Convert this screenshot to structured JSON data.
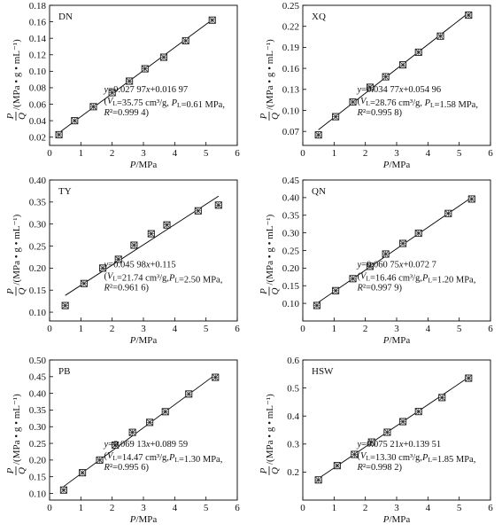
{
  "chart_data": [
    {
      "type": "scatter",
      "panel_label": "DN",
      "xlabel": "P/MPa",
      "ylabel": "P/Q /(MPa • g • mL⁻¹)",
      "xlim": [
        0,
        6
      ],
      "ylim": [
        0.01,
        0.18
      ],
      "xticks": [
        0,
        1,
        2,
        3,
        4,
        5,
        6
      ],
      "xtick_labels": [
        "0",
        "1",
        "2",
        "3",
        "4",
        "5",
        "6"
      ],
      "yticks": [
        0.02,
        0.04,
        0.06,
        0.08,
        0.1,
        0.12,
        0.14,
        0.16,
        0.18
      ],
      "ytick_labels": [
        "0.02",
        "0.04",
        "0.06",
        "0.08",
        "0.10",
        "0.12",
        "0.14",
        "0.16",
        "0.18"
      ],
      "points": {
        "x": [
          0.3,
          0.8,
          1.4,
          2.0,
          2.55,
          3.05,
          3.65,
          4.35,
          5.2
        ],
        "y": [
          0.023,
          0.04,
          0.057,
          0.074,
          0.088,
          0.103,
          0.117,
          0.137,
          0.162
        ]
      },
      "fit": {
        "slope": 0.02797,
        "intercept": 0.01697,
        "x_range": [
          0.3,
          5.25
        ]
      },
      "annotation": [
        "y=0.027 97x+0.016 97",
        "(VL=35.75 cm³/g,  PL=0.61 MPa,",
        "R²=0.999 4)"
      ],
      "ann_pos": "lower-right",
      "label_pos": "top-left"
    },
    {
      "type": "scatter",
      "panel_label": "XQ",
      "xlabel": "P/MPa",
      "ylabel": "P/Q /(MPa • g • mL⁻¹)",
      "xlim": [
        0,
        6
      ],
      "ylim": [
        0.05,
        0.25
      ],
      "xticks": [
        0,
        1,
        2,
        3,
        4,
        5,
        6
      ],
      "xtick_labels": [
        "0",
        "1",
        "2",
        "3",
        "4",
        "5",
        "6"
      ],
      "yticks": [
        0.07,
        0.1,
        0.13,
        0.16,
        0.19,
        0.22,
        0.25
      ],
      "ytick_labels": [
        "0.07",
        "0.10",
        "0.13",
        "0.16",
        "0.19",
        "0.22",
        "0.25"
      ],
      "points": {
        "x": [
          0.5,
          1.05,
          1.6,
          2.15,
          2.65,
          3.2,
          3.7,
          4.4,
          5.3
        ],
        "y": [
          0.065,
          0.091,
          0.112,
          0.133,
          0.148,
          0.165,
          0.183,
          0.206,
          0.236
        ]
      },
      "fit": {
        "slope": 0.03477,
        "intercept": 0.05496,
        "x_range": [
          0.5,
          5.3
        ]
      },
      "annotation": [
        "y=0.034 77x+0.054 96",
        "(VL=28.76 cm³/g,  PL=1.58 MPa,",
        "R²=0.995 8)"
      ],
      "ann_pos": "lower-right",
      "label_pos": "top-left"
    },
    {
      "type": "scatter",
      "panel_label": "TY",
      "xlabel": "P/MPa",
      "ylabel": "P/Q /(MPa • g • mL⁻¹)",
      "xlim": [
        0,
        6
      ],
      "ylim": [
        0.08,
        0.4
      ],
      "xticks": [
        0,
        1,
        2,
        3,
        4,
        5,
        6
      ],
      "xtick_labels": [
        "0",
        "1",
        "2",
        "3",
        "4",
        "5",
        "6"
      ],
      "yticks": [
        0.1,
        0.15,
        0.2,
        0.25,
        0.3,
        0.35,
        0.4
      ],
      "ytick_labels": [
        "0.10",
        "0.15",
        "0.20",
        "0.25",
        "0.30",
        "0.35",
        "0.40"
      ],
      "points": {
        "x": [
          0.5,
          1.1,
          1.7,
          2.2,
          2.7,
          3.25,
          3.75,
          4.75,
          5.4
        ],
        "y": [
          0.115,
          0.165,
          0.2,
          0.22,
          0.252,
          0.278,
          0.298,
          0.33,
          0.343
        ]
      },
      "fit": {
        "slope": 0.04598,
        "intercept": 0.115,
        "x_range": [
          0.5,
          5.4
        ]
      },
      "annotation": [
        "y=0.045 98x+0.115",
        "(VL=21.74 cm³/g,PL=2.50 MPa,",
        "R²=0.961 6)"
      ],
      "ann_pos": "lower-right",
      "label_pos": "top-left"
    },
    {
      "type": "scatter",
      "panel_label": "QN",
      "xlabel": "P/MPa",
      "ylabel": "P/Q /(MPa • g • mL⁻¹)",
      "xlim": [
        0,
        6
      ],
      "ylim": [
        0.05,
        0.45
      ],
      "xticks": [
        0,
        1,
        2,
        3,
        4,
        5,
        6
      ],
      "xtick_labels": [
        "0",
        "1",
        "2",
        "3",
        "4",
        "5",
        "6"
      ],
      "yticks": [
        0.1,
        0.15,
        0.2,
        0.25,
        0.3,
        0.35,
        0.4,
        0.45
      ],
      "ytick_labels": [
        "0.10",
        "0.15",
        "0.20",
        "0.25",
        "0.30",
        "0.35",
        "0.40",
        "0.45"
      ],
      "points": {
        "x": [
          0.45,
          1.05,
          1.6,
          2.15,
          2.65,
          3.2,
          3.7,
          4.65,
          5.4
        ],
        "y": [
          0.094,
          0.136,
          0.17,
          0.205,
          0.24,
          0.27,
          0.299,
          0.355,
          0.396
        ]
      },
      "fit": {
        "slope": 0.06075,
        "intercept": 0.0727,
        "x_range": [
          0.45,
          5.4
        ]
      },
      "annotation": [
        "y=0.060 75x+0.072 7",
        "(VL=16.46 cm³/g,PL=1.20 MPa,",
        "R²=0.997 9)"
      ],
      "ann_pos": "lower-right",
      "label_pos": "top-left"
    },
    {
      "type": "scatter",
      "panel_label": "PB",
      "xlabel": "P/MPa",
      "ylabel": "P/Q /(MPa • g • mL⁻¹)",
      "xlim": [
        0,
        6
      ],
      "ylim": [
        0.08,
        0.5
      ],
      "xticks": [
        0,
        1,
        2,
        3,
        4,
        5,
        6
      ],
      "xtick_labels": [
        "0",
        "1",
        "2",
        "3",
        "4",
        "5",
        "6"
      ],
      "yticks": [
        0.1,
        0.15,
        0.2,
        0.25,
        0.3,
        0.35,
        0.4,
        0.45,
        0.5
      ],
      "ytick_labels": [
        "0.10",
        "0.15",
        "0.20",
        "0.25",
        "0.30",
        "0.35",
        "0.40",
        "0.45",
        "0.50"
      ],
      "points": {
        "x": [
          0.45,
          1.05,
          1.6,
          2.1,
          2.65,
          3.2,
          3.7,
          4.45,
          5.3
        ],
        "y": [
          0.11,
          0.162,
          0.2,
          0.245,
          0.283,
          0.313,
          0.345,
          0.398,
          0.448
        ]
      },
      "fit": {
        "slope": 0.06913,
        "intercept": 0.08959,
        "x_range": [
          0.45,
          5.3
        ]
      },
      "annotation": [
        "y=0.069 13x+0.089 59",
        "(VL=14.47 cm³/g,PL=1.30 MPa,",
        "R²=0.995 6)"
      ],
      "ann_pos": "lower-right",
      "label_pos": "top-left"
    },
    {
      "type": "scatter",
      "panel_label": "HSW",
      "xlabel": "P/MPa",
      "ylabel": "P/Q /(MPa • g • mL⁻¹)",
      "xlim": [
        0,
        6
      ],
      "ylim": [
        0.1,
        0.6
      ],
      "xticks": [
        0,
        1,
        2,
        3,
        4,
        5,
        6
      ],
      "xtick_labels": [
        "0",
        "1",
        "2",
        "3",
        "4",
        "5",
        "6"
      ],
      "yticks": [
        0.2,
        0.3,
        0.4,
        0.5,
        0.6
      ],
      "ytick_labels": [
        "0.2",
        "0.3",
        "0.4",
        "0.5",
        "0.6"
      ],
      "points": {
        "x": [
          0.5,
          1.1,
          1.65,
          2.2,
          2.7,
          3.2,
          3.7,
          4.45,
          5.3
        ],
        "y": [
          0.172,
          0.223,
          0.263,
          0.307,
          0.342,
          0.38,
          0.416,
          0.466,
          0.535
        ]
      },
      "fit": {
        "slope": 0.07521,
        "intercept": 0.13951,
        "x_range": [
          0.5,
          5.3
        ]
      },
      "annotation": [
        "y=0.075 21x+0.139 51",
        "(VL=13.30 cm³/g,PL=1.85 MPa,",
        "R²=0.998 2)"
      ],
      "ann_pos": "lower-right",
      "label_pos": "top-left"
    }
  ]
}
